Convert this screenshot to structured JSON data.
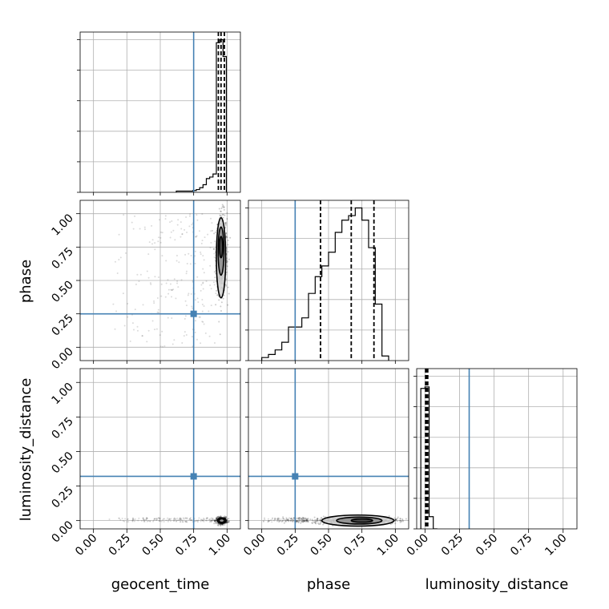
{
  "chart_data": {
    "type": "corner",
    "parameters": [
      "geocent_time",
      "phase",
      "luminosity_distance"
    ],
    "axis_labels": {
      "geocent_time": "geocent_time",
      "phase": "phase",
      "luminosity_distance": "luminosity_distance"
    },
    "ticks": [
      "0.00",
      "0.25",
      "0.50",
      "0.75",
      "1.00"
    ],
    "tick_values": [
      0,
      0.25,
      0.5,
      0.75,
      1.0
    ],
    "range": {
      "geocent_time": [
        -0.1,
        1.1
      ],
      "phase": [
        -0.1,
        1.1
      ],
      "luminosity_distance": [
        -0.06,
        1.1
      ]
    },
    "truths": {
      "geocent_time": 0.75,
      "phase": 0.25,
      "luminosity_distance": 0.32
    },
    "truth_color": "#4682b4",
    "grid": true,
    "histograms": {
      "geocent_time": {
        "bin_width": 0.025,
        "ymax": 1.05,
        "bins": [
          [
            0.62,
            0.008
          ],
          [
            0.645,
            0.008
          ],
          [
            0.67,
            0.008
          ],
          [
            0.695,
            0.008
          ],
          [
            0.72,
            0.008
          ],
          [
            0.745,
            0.012
          ],
          [
            0.77,
            0.018
          ],
          [
            0.795,
            0.03
          ],
          [
            0.82,
            0.05
          ],
          [
            0.845,
            0.09
          ],
          [
            0.87,
            0.1
          ],
          [
            0.895,
            0.12
          ],
          [
            0.92,
            0.98
          ],
          [
            0.945,
            1.0
          ],
          [
            0.97,
            0.89
          ]
        ],
        "quantiles": [
          0.935,
          0.955,
          0.98
        ]
      },
      "phase": {
        "bin_width": 0.05,
        "ymax": 1.05,
        "bins": [
          [
            0.0,
            0.02
          ],
          [
            0.05,
            0.04
          ],
          [
            0.1,
            0.07
          ],
          [
            0.15,
            0.12
          ],
          [
            0.2,
            0.22
          ],
          [
            0.25,
            0.22
          ],
          [
            0.3,
            0.28
          ],
          [
            0.35,
            0.44
          ],
          [
            0.4,
            0.55
          ],
          [
            0.45,
            0.62
          ],
          [
            0.5,
            0.71
          ],
          [
            0.55,
            0.84
          ],
          [
            0.6,
            0.92
          ],
          [
            0.65,
            0.95
          ],
          [
            0.7,
            1.0
          ],
          [
            0.75,
            0.92
          ],
          [
            0.8,
            0.74
          ],
          [
            0.85,
            0.37
          ],
          [
            0.9,
            0.03
          ]
        ],
        "quantiles": [
          0.44,
          0.67,
          0.84
        ]
      },
      "luminosity_distance": {
        "bin_width": 0.03,
        "ymax": 1.05,
        "bins": [
          [
            -0.03,
            0.92
          ],
          [
            0.0,
            0.93
          ],
          [
            0.03,
            0.08
          ],
          [
            0.06,
            0.0
          ]
        ],
        "quantiles": [
          0.005,
          0.01,
          0.02
        ]
      }
    },
    "scatter": {
      "phase_vs_geocent_time": {
        "core": {
          "x": 0.96,
          "y": 0.7,
          "sx": 0.02,
          "sy": 0.15,
          "n": 600
        },
        "tail": {
          "x0": 0.1,
          "x1": 0.92,
          "y0": 0.0,
          "y1": 1.0,
          "n": 220
        }
      },
      "luminosity_distance_vs_geocent_time": {
        "core": {
          "x": 0.96,
          "y": 0.0,
          "sx": 0.02,
          "sy": 0.012,
          "n": 500
        },
        "tail": {
          "x0": 0.1,
          "x1": 0.92,
          "y0": -0.01,
          "y1": 0.02,
          "n": 160
        }
      },
      "luminosity_distance_vs_phase": {
        "core": {
          "x": 0.7,
          "y": 0.0,
          "sx": 0.16,
          "sy": 0.012,
          "n": 700
        },
        "tail": {
          "x0": 0.0,
          "x1": 0.35,
          "y0": -0.01,
          "y1": 0.02,
          "n": 150
        }
      }
    },
    "contours": {
      "phase_vs_geocent_time": [
        {
          "cx": 0.955,
          "cy": 0.67,
          "rx": 0.035,
          "ry": 0.3
        },
        {
          "cx": 0.955,
          "cy": 0.72,
          "rx": 0.022,
          "ry": 0.18
        },
        {
          "cx": 0.955,
          "cy": 0.75,
          "rx": 0.012,
          "ry": 0.08
        }
      ],
      "luminosity_distance_vs_geocent_time": [
        {
          "cx": 0.96,
          "cy": 0.0,
          "rx": 0.03,
          "ry": 0.02
        },
        {
          "cx": 0.96,
          "cy": 0.0,
          "rx": 0.02,
          "ry": 0.013
        }
      ],
      "luminosity_distance_vs_phase": [
        {
          "cx": 0.72,
          "cy": 0.0,
          "rx": 0.27,
          "ry": 0.04
        },
        {
          "cx": 0.73,
          "cy": 0.0,
          "rx": 0.17,
          "ry": 0.025
        },
        {
          "cx": 0.75,
          "cy": 0.0,
          "rx": 0.08,
          "ry": 0.012
        }
      ]
    }
  }
}
